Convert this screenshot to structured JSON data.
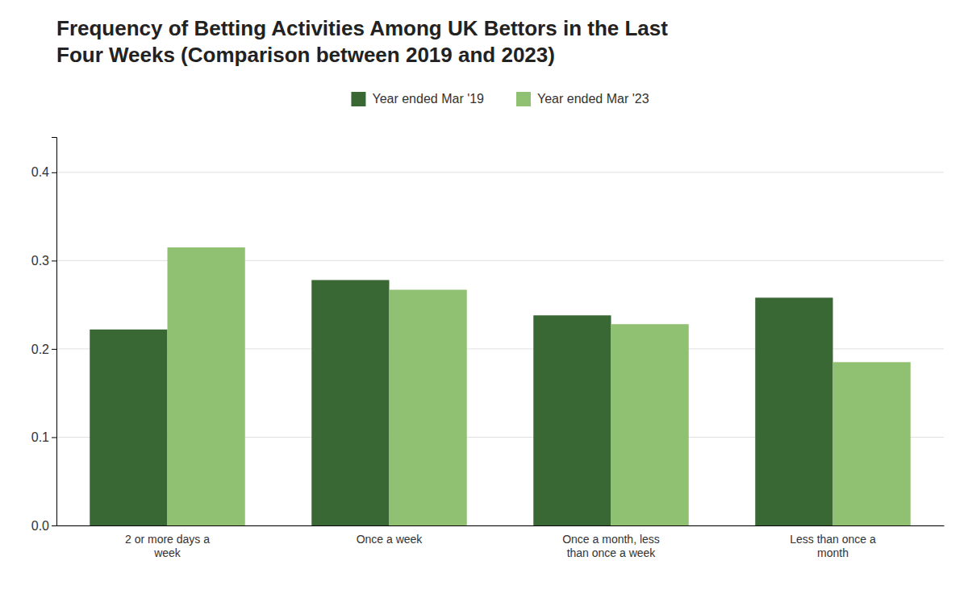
{
  "chart_data": {
    "type": "bar",
    "title": "Frequency of Betting Activities Among UK Bettors in the Last\nFour Weeks (Comparison between 2019 and 2023)",
    "categories": [
      "2 or more days a\nweek",
      "Once a week",
      "Once a month, less\nthan once a week",
      "Less than once a\nmonth"
    ],
    "series": [
      {
        "name": "Year ended Mar '19",
        "color": "#3A6835",
        "values": [
          0.222,
          0.278,
          0.238,
          0.258
        ]
      },
      {
        "name": "Year ended Mar '23",
        "color": "#90C172",
        "values": [
          0.315,
          0.267,
          0.228,
          0.185
        ]
      }
    ],
    "ylim": [
      0,
      0.44
    ],
    "yticks": [
      {
        "value": 0,
        "label": "0.0"
      },
      0.1,
      0.2,
      0.3,
      0.4
    ],
    "grid": true,
    "legend": "top"
  }
}
